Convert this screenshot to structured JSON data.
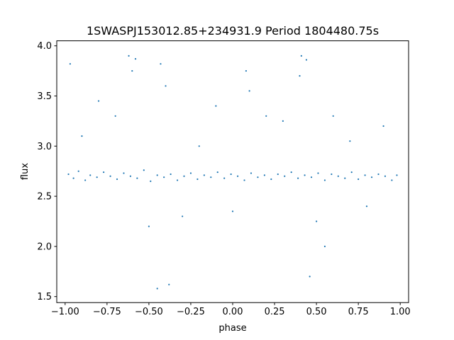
{
  "chart_data": {
    "type": "scatter",
    "title": "1SWASPJ153012.85+234931.9 Period 1804480.75s",
    "xlabel": "phase",
    "ylabel": "flux",
    "xlim": [
      -1.05,
      1.05
    ],
    "ylim": [
      1.44,
      4.05
    ],
    "x_ticks": [
      -1.0,
      -0.75,
      -0.5,
      -0.25,
      0.0,
      0.25,
      0.5,
      0.75,
      1.0
    ],
    "x_tick_labels": [
      "−1.00",
      "−0.75",
      "−0.50",
      "−0.25",
      "0.00",
      "0.25",
      "0.50",
      "0.75",
      "1.00"
    ],
    "y_ticks": [
      1.5,
      2.0,
      2.5,
      3.0,
      3.5,
      4.0
    ],
    "y_tick_labels": [
      "1.5",
      "2.0",
      "2.5",
      "3.0",
      "3.5",
      "4.0"
    ],
    "grid": false,
    "legend": "none",
    "marker_color": "#1f77b4",
    "series": [
      {
        "x": [
          -0.98,
          -0.95,
          -0.92,
          -0.88,
          -0.85,
          -0.81,
          -0.77,
          -0.73,
          -0.69,
          -0.65,
          -0.61,
          -0.57,
          -0.53,
          -0.49,
          -0.45,
          -0.41,
          -0.37,
          -0.33,
          -0.29,
          -0.25,
          -0.21,
          -0.17,
          -0.13,
          -0.09,
          -0.05,
          -0.01,
          0.03,
          0.07,
          0.11,
          0.15,
          0.19,
          0.23,
          0.27,
          0.31,
          0.35,
          0.39,
          0.43,
          0.47,
          0.51,
          0.55,
          0.59,
          0.63,
          0.67,
          0.71,
          0.75,
          0.79,
          0.83,
          0.87,
          0.91,
          0.95,
          0.98,
          -0.97,
          -0.9,
          -0.8,
          -0.7,
          -0.6,
          -0.5,
          -0.4,
          -0.3,
          -0.2,
          -0.1,
          0.0,
          0.1,
          0.2,
          0.3,
          0.4,
          0.5,
          0.6,
          0.7,
          0.8,
          0.9,
          -0.62,
          -0.43,
          -0.58,
          0.08,
          0.41,
          0.44,
          0.55,
          -0.38,
          -0.45,
          0.46
        ],
        "y": [
          2.72,
          2.68,
          2.75,
          2.66,
          2.71,
          2.69,
          2.74,
          2.7,
          2.67,
          2.73,
          2.7,
          2.68,
          2.76,
          2.65,
          2.71,
          2.69,
          2.72,
          2.66,
          2.7,
          2.73,
          2.67,
          2.71,
          2.69,
          2.74,
          2.68,
          2.72,
          2.7,
          2.66,
          2.73,
          2.69,
          2.71,
          2.67,
          2.72,
          2.7,
          2.74,
          2.68,
          2.71,
          2.69,
          2.73,
          2.66,
          2.72,
          2.7,
          2.68,
          2.74,
          2.67,
          2.71,
          2.69,
          2.72,
          2.7,
          2.66,
          2.71,
          3.82,
          3.1,
          3.45,
          3.3,
          3.75,
          2.2,
          3.6,
          2.3,
          3.0,
          3.4,
          2.35,
          3.55,
          3.3,
          3.25,
          3.7,
          2.25,
          3.3,
          3.05,
          2.4,
          3.2,
          3.9,
          3.82,
          3.87,
          3.75,
          3.9,
          3.86,
          2.0,
          1.62,
          1.58,
          1.7
        ]
      }
    ]
  }
}
